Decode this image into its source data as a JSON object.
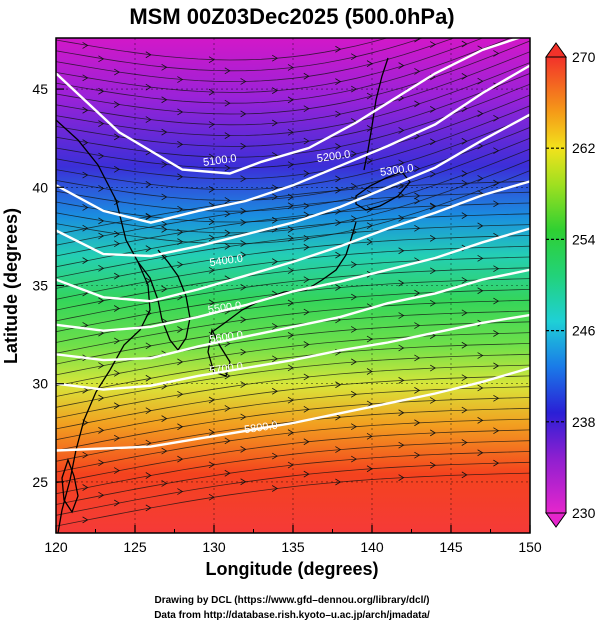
{
  "title": "MSM 00Z03Dec2025 (500.0hPa)",
  "xlabel": "Longitude (degrees)",
  "ylabel": "Latitude  (degrees)",
  "x_ticks": [
    "120",
    "125",
    "130",
    "135",
    "140",
    "145",
    "150"
  ],
  "y_ticks": [
    "25",
    "30",
    "35",
    "40",
    "45"
  ],
  "colorbar": {
    "min": 230,
    "max": 270,
    "tick_labels": [
      "270",
      "262",
      "254",
      "246",
      "238",
      "230"
    ]
  },
  "contour_labels": [
    "5100.0",
    "5200.0",
    "5300.0",
    "5400.0",
    "5500.0",
    "5600.0",
    "5700.0",
    "5800.0"
  ],
  "credits": {
    "line1": "Drawing by DCL (https://www.gfd–dennou.org/library/dcl/)",
    "line2": "Data from http://database.rish.kyoto–u.ac.jp/arch/jmadata/"
  },
  "chart_data": {
    "type": "heatmap",
    "title": "MSM 00Z03Dec2025 (500.0hPa)",
    "xlabel": "Longitude (degrees)",
    "ylabel": "Latitude  (degrees)",
    "xlim": [
      120,
      150
    ],
    "ylim": [
      22.4,
      47.6
    ],
    "grid": true,
    "color_scale": {
      "min": 230,
      "max": 270,
      "colormap": "rainbow (purple-blue-green-yellow-red)"
    },
    "contours": [
      {
        "level": 5100.0,
        "label": "5100.0",
        "lon": [
          120,
          124,
          128,
          131,
          133,
          136,
          139,
          142,
          144,
          147,
          150
        ],
        "lat": [
          45.8,
          42.8,
          40.9,
          40.7,
          41.3,
          42.0,
          43.3,
          44.8,
          45.8,
          47.0,
          47.8
        ]
      },
      {
        "level": 5200.0,
        "label": "5200.0",
        "lon": [
          120,
          123,
          126,
          129,
          132,
          135,
          138,
          141,
          144,
          147,
          150
        ],
        "lat": [
          40.1,
          38.8,
          38.2,
          38.8,
          39.3,
          40.1,
          41.1,
          42.1,
          43.2,
          44.8,
          46.2
        ]
      },
      {
        "level": 5300.0,
        "label": "5300.0",
        "lon": [
          120,
          123,
          126,
          129,
          132,
          135,
          138,
          141,
          144,
          147,
          150
        ],
        "lat": [
          37.8,
          36.6,
          36.5,
          37.0,
          37.6,
          38.2,
          39.0,
          40.0,
          41.0,
          42.4,
          43.7
        ]
      },
      {
        "level": 5400.0,
        "label": "5400.0",
        "lon": [
          120,
          123,
          126,
          129,
          132,
          135,
          138,
          141,
          144,
          147,
          150
        ],
        "lat": [
          35.3,
          34.4,
          34.2,
          34.8,
          35.5,
          36.2,
          37.0,
          37.9,
          38.7,
          39.6,
          40.3
        ]
      },
      {
        "level": 5500.0,
        "label": "5500.0",
        "lon": [
          120,
          123,
          126,
          129,
          132,
          135,
          138,
          141,
          144,
          147,
          150
        ],
        "lat": [
          33.0,
          32.7,
          32.9,
          33.4,
          34.0,
          34.7,
          35.2,
          35.8,
          36.4,
          37.2,
          37.9
        ]
      },
      {
        "level": 5600.0,
        "label": "5600.0",
        "lon": [
          120,
          123,
          126,
          129,
          132,
          135,
          138,
          141,
          144,
          147,
          150
        ],
        "lat": [
          31.5,
          31.2,
          31.3,
          31.9,
          32.4,
          32.9,
          33.4,
          34.1,
          34.6,
          35.3,
          35.8
        ]
      },
      {
        "level": 5700.0,
        "label": "5700.0",
        "lon": [
          120,
          123,
          126,
          129,
          132,
          135,
          138,
          141,
          144,
          147,
          150
        ],
        "lat": [
          30.0,
          29.7,
          29.9,
          30.4,
          30.8,
          31.2,
          31.7,
          32.1,
          32.6,
          33.1,
          33.5
        ]
      },
      {
        "level": 5800.0,
        "label": "5800.0",
        "lon": [
          120,
          123,
          126,
          129,
          132,
          135,
          138,
          141,
          144,
          147,
          150
        ],
        "lat": [
          26.6,
          26.7,
          26.8,
          27.2,
          27.6,
          28.0,
          28.5,
          29.0,
          29.5,
          30.1,
          30.8
        ]
      }
    ],
    "contour_label_positions": [
      {
        "label": "5100.0",
        "lon": 130.4,
        "lat": 41.2
      },
      {
        "label": "5200.0",
        "lon": 137.6,
        "lat": 41.4
      },
      {
        "label": "5300.0",
        "lon": 141.6,
        "lat": 40.7
      },
      {
        "label": "5400.0",
        "lon": 130.8,
        "lat": 36.1
      },
      {
        "label": "5500.0",
        "lon": 130.7,
        "lat": 33.7
      },
      {
        "label": "5600.0",
        "lon": 130.8,
        "lat": 32.2
      },
      {
        "label": "5700.0",
        "lon": 130.8,
        "lat": 30.6
      },
      {
        "label": "5800.0",
        "lon": 133.0,
        "lat": 27.6
      }
    ]
  }
}
